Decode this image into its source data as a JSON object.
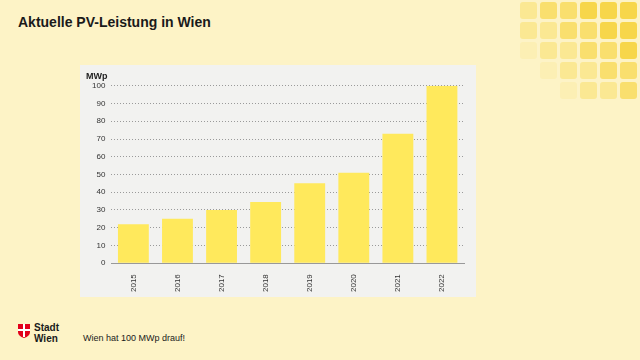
{
  "title": "Aktuelle PV-Leistung in Wien",
  "footer": "Wien hat 100 MWp drauf!",
  "logo": [
    "Stadt",
    "Wien"
  ],
  "chart_data": {
    "type": "bar",
    "y_label": "MWp",
    "categories": [
      "2015",
      "2016",
      "2017",
      "2018",
      "2019",
      "2020",
      "2021",
      "2022"
    ],
    "values": [
      22,
      25,
      30,
      34.5,
      45,
      51,
      73,
      100
    ],
    "color": "#ffe95c",
    "ylim": [
      0,
      100
    ],
    "yticks": [
      0,
      10,
      20,
      30,
      40,
      50,
      60,
      70,
      80,
      90,
      100
    ],
    "grid": true
  }
}
